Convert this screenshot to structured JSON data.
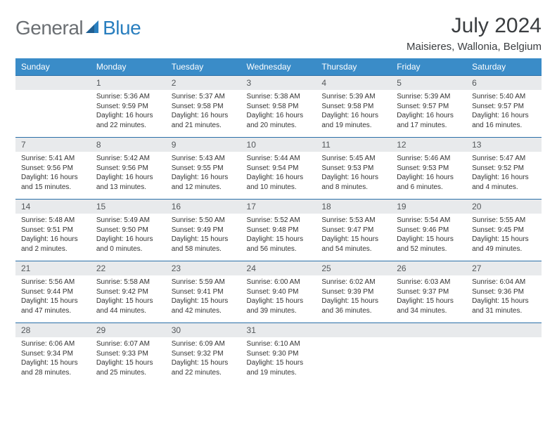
{
  "brand": {
    "part1": "General",
    "part2": "Blue"
  },
  "title": "July 2024",
  "location": "Maisieres, Wallonia, Belgium",
  "colors": {
    "header_bg": "#3a8cc8",
    "header_fg": "#ffffff",
    "daynum_bg": "#e8eaec",
    "row_border": "#2a6fa8",
    "logo_gray": "#6b6f73",
    "logo_blue": "#2a7fbf"
  },
  "weekdays": [
    "Sunday",
    "Monday",
    "Tuesday",
    "Wednesday",
    "Thursday",
    "Friday",
    "Saturday"
  ],
  "calendar": {
    "type": "table",
    "columns": 7,
    "fontsize_header": 12,
    "fontsize_daynum": 12,
    "fontsize_body": 10,
    "weeks": [
      [
        {
          "day": "",
          "lines": []
        },
        {
          "day": "1",
          "lines": [
            "Sunrise: 5:36 AM",
            "Sunset: 9:59 PM",
            "Daylight: 16 hours and 22 minutes."
          ]
        },
        {
          "day": "2",
          "lines": [
            "Sunrise: 5:37 AM",
            "Sunset: 9:58 PM",
            "Daylight: 16 hours and 21 minutes."
          ]
        },
        {
          "day": "3",
          "lines": [
            "Sunrise: 5:38 AM",
            "Sunset: 9:58 PM",
            "Daylight: 16 hours and 20 minutes."
          ]
        },
        {
          "day": "4",
          "lines": [
            "Sunrise: 5:39 AM",
            "Sunset: 9:58 PM",
            "Daylight: 16 hours and 19 minutes."
          ]
        },
        {
          "day": "5",
          "lines": [
            "Sunrise: 5:39 AM",
            "Sunset: 9:57 PM",
            "Daylight: 16 hours and 17 minutes."
          ]
        },
        {
          "day": "6",
          "lines": [
            "Sunrise: 5:40 AM",
            "Sunset: 9:57 PM",
            "Daylight: 16 hours and 16 minutes."
          ]
        }
      ],
      [
        {
          "day": "7",
          "lines": [
            "Sunrise: 5:41 AM",
            "Sunset: 9:56 PM",
            "Daylight: 16 hours and 15 minutes."
          ]
        },
        {
          "day": "8",
          "lines": [
            "Sunrise: 5:42 AM",
            "Sunset: 9:56 PM",
            "Daylight: 16 hours and 13 minutes."
          ]
        },
        {
          "day": "9",
          "lines": [
            "Sunrise: 5:43 AM",
            "Sunset: 9:55 PM",
            "Daylight: 16 hours and 12 minutes."
          ]
        },
        {
          "day": "10",
          "lines": [
            "Sunrise: 5:44 AM",
            "Sunset: 9:54 PM",
            "Daylight: 16 hours and 10 minutes."
          ]
        },
        {
          "day": "11",
          "lines": [
            "Sunrise: 5:45 AM",
            "Sunset: 9:53 PM",
            "Daylight: 16 hours and 8 minutes."
          ]
        },
        {
          "day": "12",
          "lines": [
            "Sunrise: 5:46 AM",
            "Sunset: 9:53 PM",
            "Daylight: 16 hours and 6 minutes."
          ]
        },
        {
          "day": "13",
          "lines": [
            "Sunrise: 5:47 AM",
            "Sunset: 9:52 PM",
            "Daylight: 16 hours and 4 minutes."
          ]
        }
      ],
      [
        {
          "day": "14",
          "lines": [
            "Sunrise: 5:48 AM",
            "Sunset: 9:51 PM",
            "Daylight: 16 hours and 2 minutes."
          ]
        },
        {
          "day": "15",
          "lines": [
            "Sunrise: 5:49 AM",
            "Sunset: 9:50 PM",
            "Daylight: 16 hours and 0 minutes."
          ]
        },
        {
          "day": "16",
          "lines": [
            "Sunrise: 5:50 AM",
            "Sunset: 9:49 PM",
            "Daylight: 15 hours and 58 minutes."
          ]
        },
        {
          "day": "17",
          "lines": [
            "Sunrise: 5:52 AM",
            "Sunset: 9:48 PM",
            "Daylight: 15 hours and 56 minutes."
          ]
        },
        {
          "day": "18",
          "lines": [
            "Sunrise: 5:53 AM",
            "Sunset: 9:47 PM",
            "Daylight: 15 hours and 54 minutes."
          ]
        },
        {
          "day": "19",
          "lines": [
            "Sunrise: 5:54 AM",
            "Sunset: 9:46 PM",
            "Daylight: 15 hours and 52 minutes."
          ]
        },
        {
          "day": "20",
          "lines": [
            "Sunrise: 5:55 AM",
            "Sunset: 9:45 PM",
            "Daylight: 15 hours and 49 minutes."
          ]
        }
      ],
      [
        {
          "day": "21",
          "lines": [
            "Sunrise: 5:56 AM",
            "Sunset: 9:44 PM",
            "Daylight: 15 hours and 47 minutes."
          ]
        },
        {
          "day": "22",
          "lines": [
            "Sunrise: 5:58 AM",
            "Sunset: 9:42 PM",
            "Daylight: 15 hours and 44 minutes."
          ]
        },
        {
          "day": "23",
          "lines": [
            "Sunrise: 5:59 AM",
            "Sunset: 9:41 PM",
            "Daylight: 15 hours and 42 minutes."
          ]
        },
        {
          "day": "24",
          "lines": [
            "Sunrise: 6:00 AM",
            "Sunset: 9:40 PM",
            "Daylight: 15 hours and 39 minutes."
          ]
        },
        {
          "day": "25",
          "lines": [
            "Sunrise: 6:02 AM",
            "Sunset: 9:39 PM",
            "Daylight: 15 hours and 36 minutes."
          ]
        },
        {
          "day": "26",
          "lines": [
            "Sunrise: 6:03 AM",
            "Sunset: 9:37 PM",
            "Daylight: 15 hours and 34 minutes."
          ]
        },
        {
          "day": "27",
          "lines": [
            "Sunrise: 6:04 AM",
            "Sunset: 9:36 PM",
            "Daylight: 15 hours and 31 minutes."
          ]
        }
      ],
      [
        {
          "day": "28",
          "lines": [
            "Sunrise: 6:06 AM",
            "Sunset: 9:34 PM",
            "Daylight: 15 hours and 28 minutes."
          ]
        },
        {
          "day": "29",
          "lines": [
            "Sunrise: 6:07 AM",
            "Sunset: 9:33 PM",
            "Daylight: 15 hours and 25 minutes."
          ]
        },
        {
          "day": "30",
          "lines": [
            "Sunrise: 6:09 AM",
            "Sunset: 9:32 PM",
            "Daylight: 15 hours and 22 minutes."
          ]
        },
        {
          "day": "31",
          "lines": [
            "Sunrise: 6:10 AM",
            "Sunset: 9:30 PM",
            "Daylight: 15 hours and 19 minutes."
          ]
        },
        {
          "day": "",
          "lines": []
        },
        {
          "day": "",
          "lines": []
        },
        {
          "day": "",
          "lines": []
        }
      ]
    ]
  }
}
